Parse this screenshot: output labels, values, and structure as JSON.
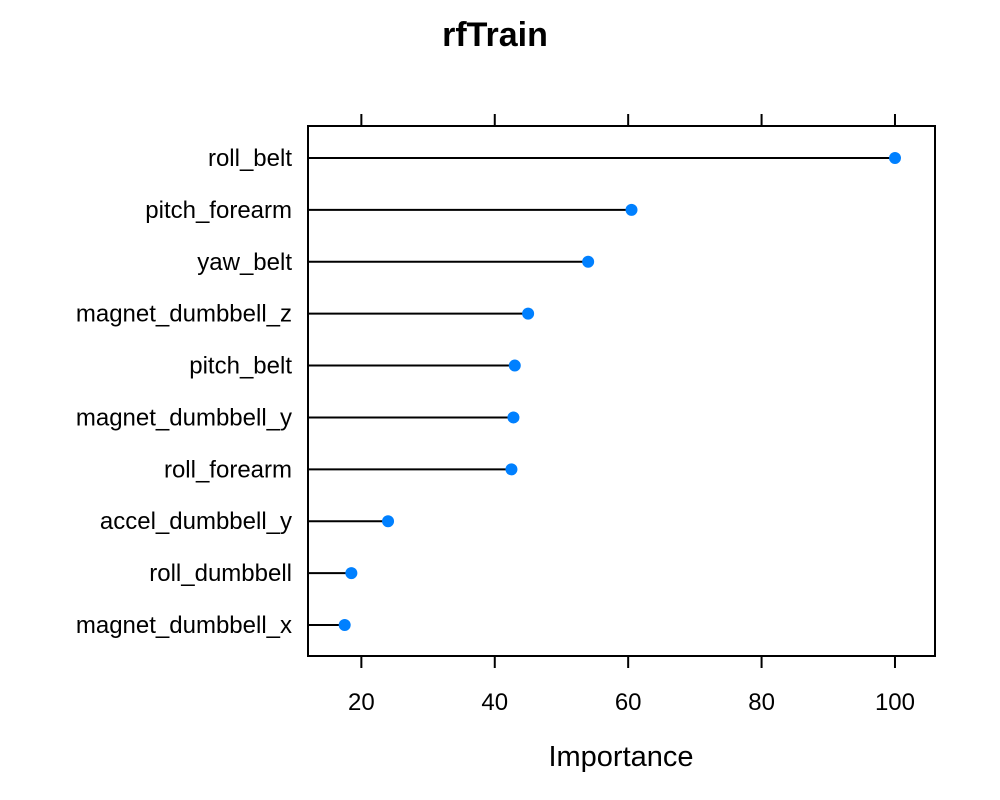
{
  "chart_data": {
    "type": "dotplot",
    "title": "rfTrain",
    "xlabel": "Importance",
    "ylabel": "",
    "xlim": [
      12,
      106
    ],
    "xticks": [
      20,
      40,
      60,
      80,
      100
    ],
    "x_tick_labels": [
      "20",
      "40",
      "60",
      "80",
      "100"
    ],
    "categories": [
      "roll_belt",
      "pitch_forearm",
      "yaw_belt",
      "magnet_dumbbell_z",
      "pitch_belt",
      "magnet_dumbbell_y",
      "roll_forearm",
      "accel_dumbbell_y",
      "roll_dumbbell",
      "magnet_dumbbell_x"
    ],
    "values": [
      100,
      60.5,
      54,
      45,
      43,
      42.8,
      42.5,
      24,
      18.5,
      17.5
    ],
    "point_color": "#0080FF",
    "grid": false
  }
}
